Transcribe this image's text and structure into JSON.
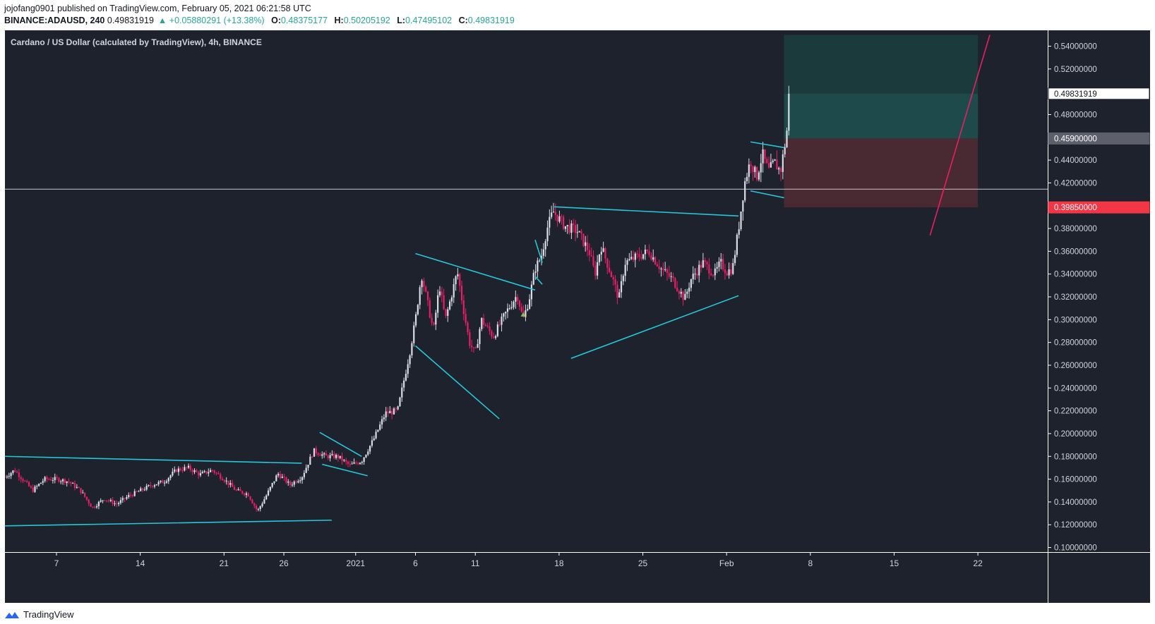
{
  "header": {
    "line1": "jojofang0901 published on TradingView.com, February 05, 2021 06:21:58 UTC",
    "symbol": "BINANCE:ADAUSD, 240",
    "last": "0.49831919",
    "change": "▲ +0.05880291 (+13.38%)",
    "o_label": "O:",
    "o_val": "0.48375177",
    "h_label": "H:",
    "h_val": "0.50205192",
    "l_label": "L:",
    "l_val": "0.47495102",
    "c_label": "C:",
    "c_val": "0.49831919"
  },
  "title": "Cardano / US Dollar (calculated by TradingView), 4h, BINANCE",
  "footer": {
    "brand": "TradingView"
  },
  "colors": {
    "background": "#1e222d",
    "up": "#d9dde6",
    "down": "#e91e63",
    "trendline": "#26c6da",
    "projection": "#e91e63",
    "horizontal": "#b2b5be",
    "target_zone": "#1f4f50",
    "stop_zone": "#4a2a32",
    "axis_text": "#d1d4dc"
  },
  "chart_data": {
    "type": "candlestick",
    "ylim": [
      0.09,
      0.55
    ],
    "y_ticks": [
      "0.10000000",
      "0.12000000",
      "0.14000000",
      "0.16000000",
      "0.18000000",
      "0.20000000",
      "0.22000000",
      "0.24000000",
      "0.26000000",
      "0.28000000",
      "0.30000000",
      "0.32000000",
      "0.34000000",
      "0.36000000",
      "0.38000000",
      "0.40000000",
      "0.42000000",
      "0.44000000",
      "0.46000000",
      "0.48000000",
      "0.50000000",
      "0.52000000",
      "0.54000000"
    ],
    "x_ticks": [
      {
        "label": "7",
        "day": 7
      },
      {
        "label": "14",
        "day": 14
      },
      {
        "label": "21",
        "day": 21
      },
      {
        "label": "26",
        "day": 26
      },
      {
        "label": "2021",
        "day": 32
      },
      {
        "label": "6",
        "day": 37
      },
      {
        "label": "11",
        "day": 42
      },
      {
        "label": "18",
        "day": 49
      },
      {
        "label": "25",
        "day": 56
      },
      {
        "label": "Feb",
        "day": 63
      },
      {
        "label": "8",
        "day": 70
      },
      {
        "label": "15",
        "day": 77
      },
      {
        "label": "22",
        "day": 84
      }
    ],
    "price_labels": [
      {
        "value": 0.49831919,
        "text": "0.49831919",
        "style": "last"
      },
      {
        "value": 0.459,
        "text": "0.45900000",
        "style": "entry"
      },
      {
        "value": 0.3985,
        "text": "0.39850000",
        "style": "stop"
      }
    ],
    "price_path": [
      [
        2.7,
        0.162
      ],
      [
        3.5,
        0.168
      ],
      [
        4.5,
        0.156
      ],
      [
        5.0,
        0.15
      ],
      [
        6.0,
        0.16
      ],
      [
        7.0,
        0.16
      ],
      [
        8.0,
        0.158
      ],
      [
        9.0,
        0.15
      ],
      [
        10.0,
        0.135
      ],
      [
        11.0,
        0.143
      ],
      [
        12.0,
        0.138
      ],
      [
        13.0,
        0.145
      ],
      [
        14.0,
        0.15
      ],
      [
        15.0,
        0.155
      ],
      [
        16.0,
        0.158
      ],
      [
        17.0,
        0.168
      ],
      [
        18.0,
        0.17
      ],
      [
        19.0,
        0.164
      ],
      [
        20.0,
        0.168
      ],
      [
        21.0,
        0.16
      ],
      [
        22.0,
        0.15
      ],
      [
        23.0,
        0.147
      ],
      [
        23.8,
        0.132
      ],
      [
        24.5,
        0.145
      ],
      [
        25.5,
        0.165
      ],
      [
        26.5,
        0.155
      ],
      [
        27.5,
        0.162
      ],
      [
        28.5,
        0.185
      ],
      [
        29.5,
        0.18
      ],
      [
        30.5,
        0.18
      ],
      [
        31.5,
        0.172
      ],
      [
        32.5,
        0.176
      ],
      [
        33.5,
        0.195
      ],
      [
        34.5,
        0.218
      ],
      [
        35.5,
        0.22
      ],
      [
        36.5,
        0.27
      ],
      [
        37.0,
        0.3
      ],
      [
        37.5,
        0.34
      ],
      [
        38.0,
        0.315
      ],
      [
        38.5,
        0.29
      ],
      [
        39.0,
        0.33
      ],
      [
        39.5,
        0.3
      ],
      [
        40.5,
        0.342
      ],
      [
        41.0,
        0.31
      ],
      [
        41.5,
        0.28
      ],
      [
        42.0,
        0.27
      ],
      [
        42.5,
        0.3
      ],
      [
        43.5,
        0.285
      ],
      [
        44.5,
        0.305
      ],
      [
        45.5,
        0.322
      ],
      [
        46.0,
        0.3
      ],
      [
        46.5,
        0.318
      ],
      [
        47.0,
        0.345
      ],
      [
        47.5,
        0.355
      ],
      [
        48.0,
        0.38
      ],
      [
        48.5,
        0.395
      ],
      [
        49.5,
        0.382
      ],
      [
        50.5,
        0.378
      ],
      [
        51.5,
        0.36
      ],
      [
        52.0,
        0.34
      ],
      [
        52.5,
        0.365
      ],
      [
        53.5,
        0.335
      ],
      [
        54.0,
        0.318
      ],
      [
        54.5,
        0.35
      ],
      [
        55.5,
        0.355
      ],
      [
        56.5,
        0.36
      ],
      [
        57.5,
        0.345
      ],
      [
        58.5,
        0.335
      ],
      [
        59.5,
        0.318
      ],
      [
        60.0,
        0.335
      ],
      [
        61.0,
        0.35
      ],
      [
        62.0,
        0.34
      ],
      [
        62.5,
        0.35
      ],
      [
        63.0,
        0.342
      ],
      [
        63.5,
        0.345
      ],
      [
        64.0,
        0.38
      ],
      [
        64.5,
        0.42
      ],
      [
        65.0,
        0.44
      ],
      [
        65.5,
        0.425
      ],
      [
        66.0,
        0.445
      ],
      [
        66.5,
        0.43
      ],
      [
        67.0,
        0.438
      ],
      [
        67.5,
        0.43
      ],
      [
        68.0,
        0.462
      ],
      [
        68.3,
        0.498
      ]
    ],
    "trendlines": [
      {
        "from": [
          2.7,
          0.18
        ],
        "to": [
          27.5,
          0.174
        ]
      },
      {
        "from": [
          2.7,
          0.119
        ],
        "to": [
          30.0,
          0.124
        ]
      },
      {
        "from": [
          29.0,
          0.201
        ],
        "to": [
          32.5,
          0.18
        ]
      },
      {
        "from": [
          29.2,
          0.173
        ],
        "to": [
          33.0,
          0.163
        ]
      },
      {
        "from": [
          37.0,
          0.358
        ],
        "to": [
          47.0,
          0.326
        ]
      },
      {
        "from": [
          37.0,
          0.277
        ],
        "to": [
          44.0,
          0.213
        ]
      },
      {
        "from": [
          47.0,
          0.37
        ],
        "to": [
          47.6,
          0.35
        ]
      },
      {
        "from": [
          47.0,
          0.338
        ],
        "to": [
          47.6,
          0.331
        ]
      },
      {
        "from": [
          48.6,
          0.399
        ],
        "to": [
          64.0,
          0.391
        ]
      },
      {
        "from": [
          50.0,
          0.266
        ],
        "to": [
          64.0,
          0.321
        ]
      },
      {
        "from": [
          65.0,
          0.456
        ],
        "to": [
          67.8,
          0.451
        ]
      },
      {
        "from": [
          65.0,
          0.413
        ],
        "to": [
          67.8,
          0.407
        ]
      }
    ],
    "horizontal_line": 0.4145,
    "projection_line": {
      "from": [
        80.0,
        0.374
      ],
      "to": [
        85.0,
        0.55
      ]
    },
    "position_tool": {
      "x_start": 67.8,
      "x_end": 84.0,
      "entry": 0.459,
      "target": 0.5499,
      "stop": 0.3985,
      "current": 0.4983
    },
    "buy_marker": {
      "day": 46.0,
      "value": 0.304
    }
  }
}
